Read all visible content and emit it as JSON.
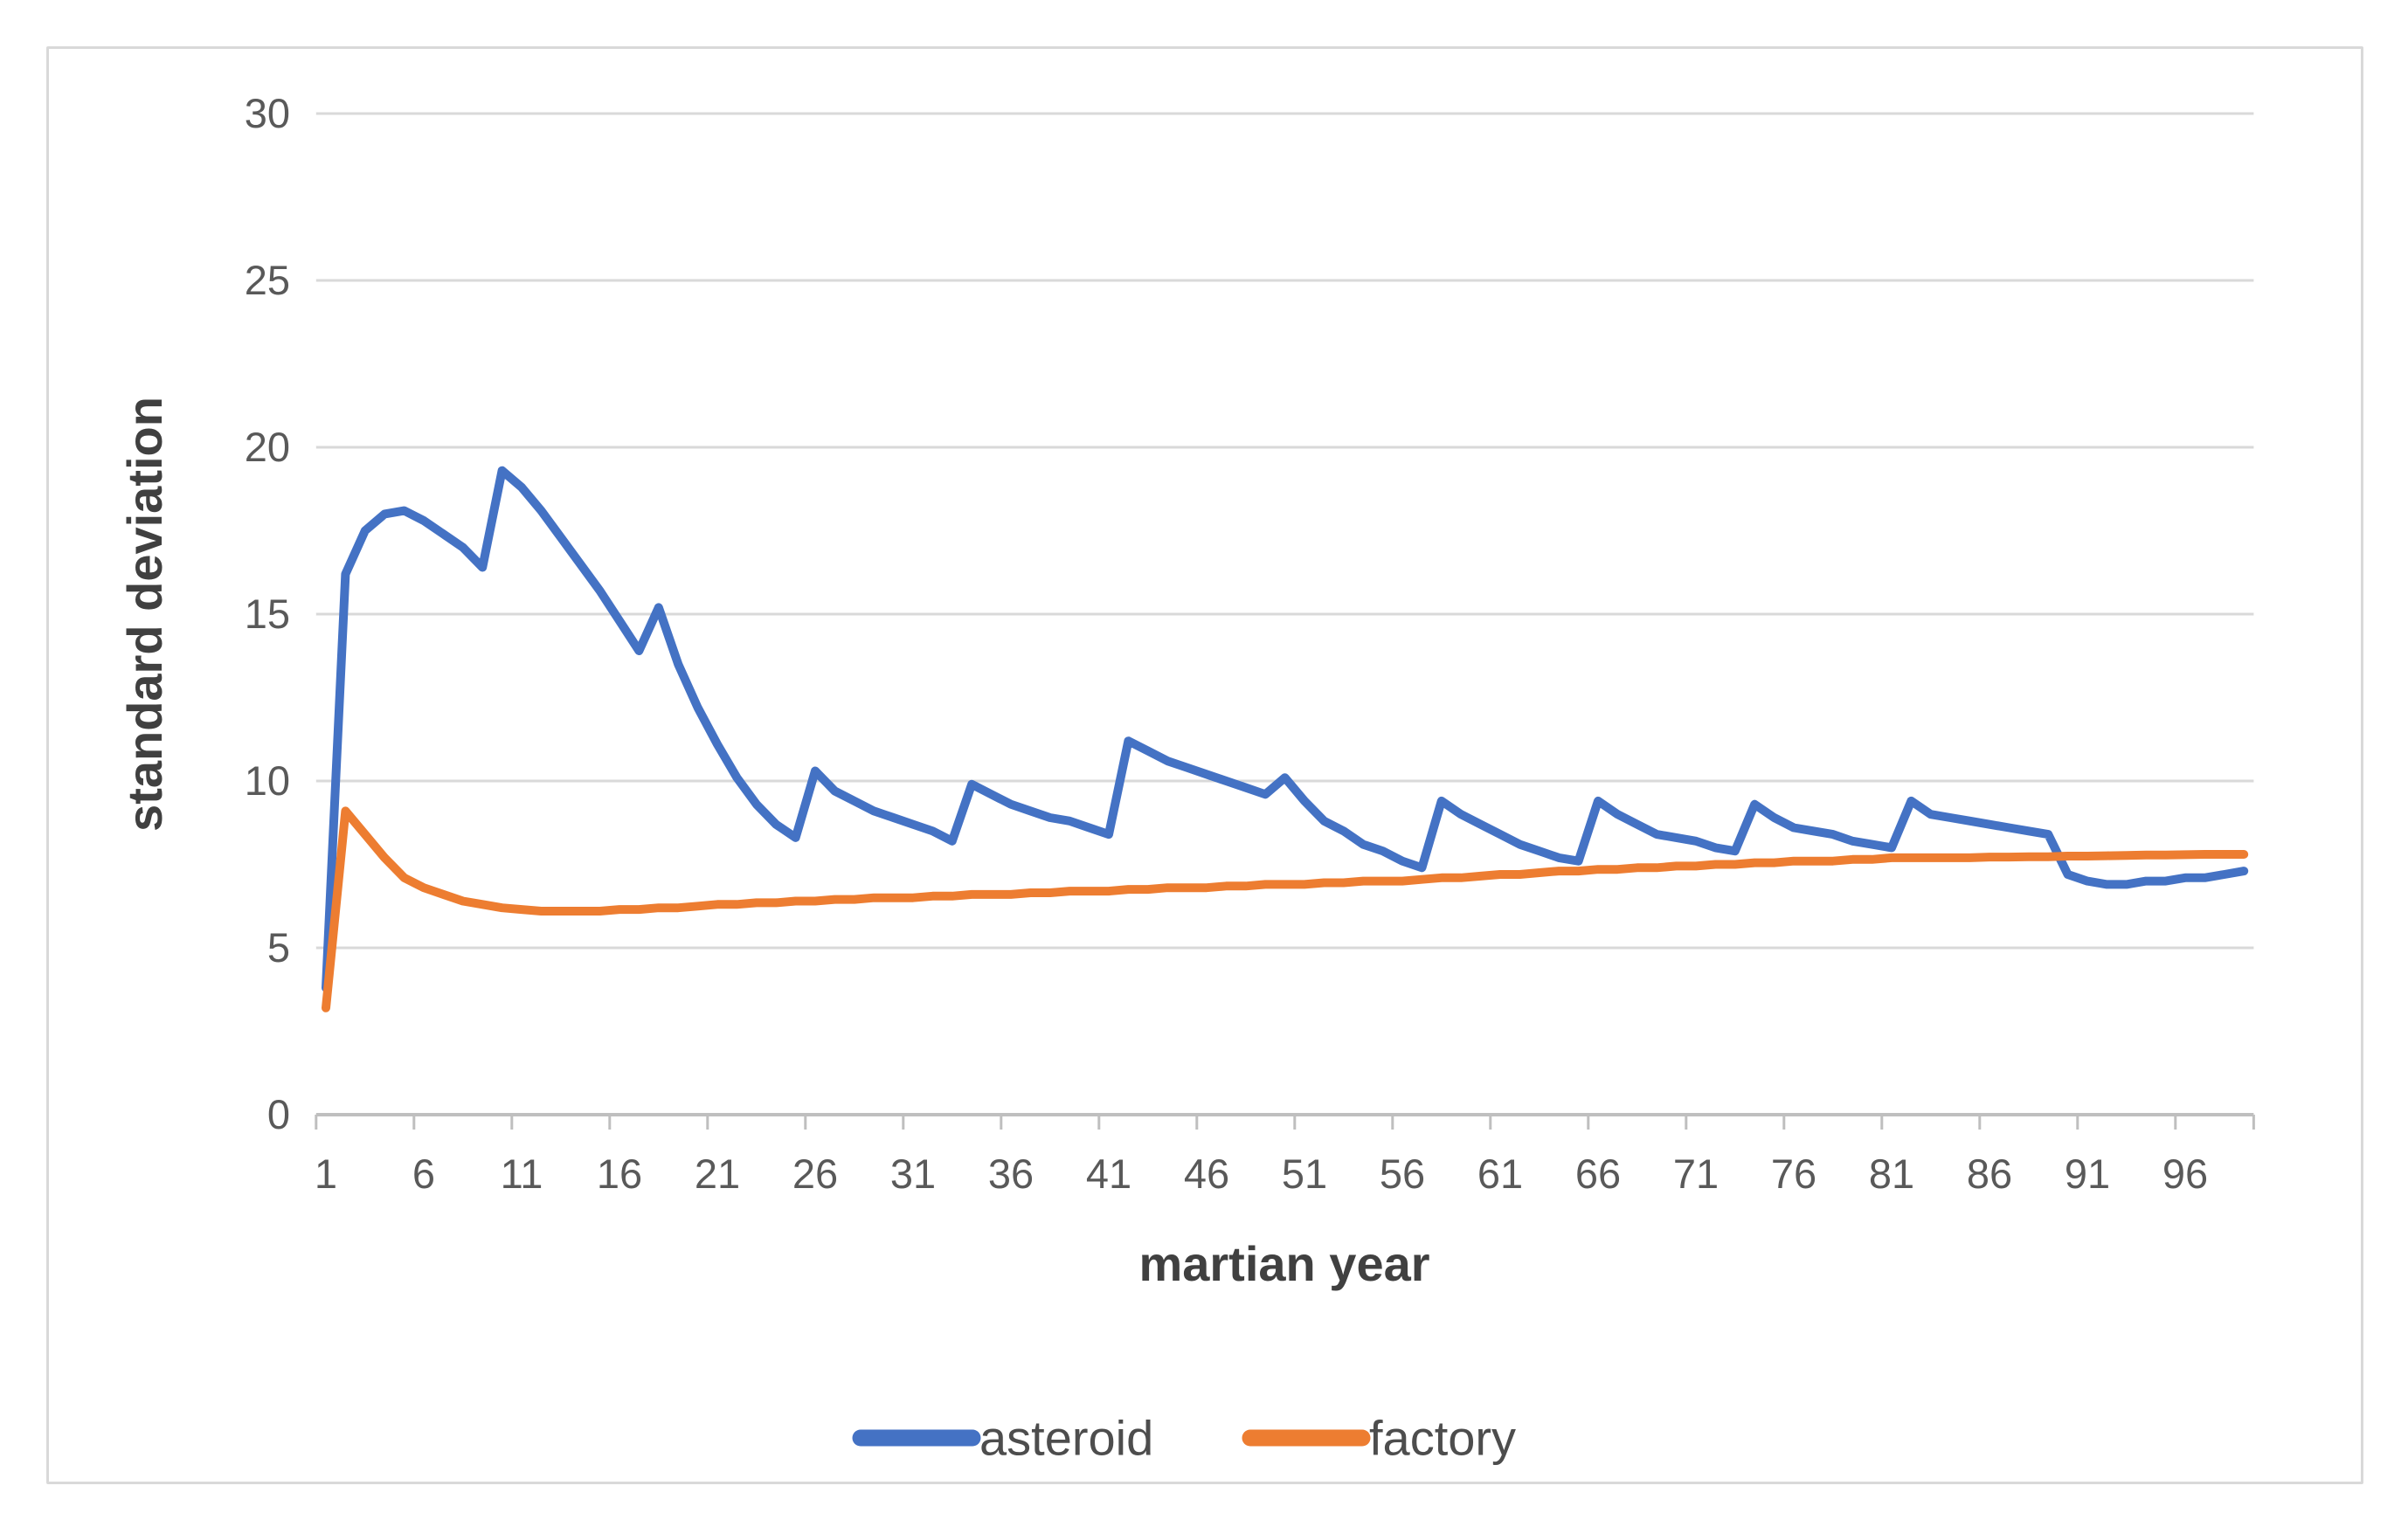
{
  "chart": {
    "y_axis": {
      "title": "standard deviation",
      "ticks": [
        0,
        5,
        10,
        15,
        20,
        25,
        30
      ]
    },
    "x_axis": {
      "title": "martian year",
      "tick_labels": [
        1,
        6,
        11,
        16,
        21,
        26,
        31,
        36,
        41,
        46,
        51,
        56,
        61,
        66,
        71,
        76,
        81,
        86,
        91,
        96
      ]
    },
    "legend": {
      "items": [
        "asteroid",
        "factory"
      ],
      "position": "bottom"
    },
    "colors": {
      "asteroid": "#4472c4",
      "factory": "#ed7d31",
      "gridline": "#d9d9d9",
      "axis": "#bfbfbf",
      "text": "#595959",
      "border": "#d9d9d9"
    }
  },
  "chart_data": {
    "type": "line",
    "title": "",
    "xlabel": "martian year",
    "ylabel": "standard deviation",
    "ylim": [
      0,
      30
    ],
    "grid": true,
    "legend_position": "bottom",
    "x": [
      1,
      2,
      3,
      4,
      5,
      6,
      7,
      8,
      9,
      10,
      11,
      12,
      13,
      14,
      15,
      16,
      17,
      18,
      19,
      20,
      21,
      22,
      23,
      24,
      25,
      26,
      27,
      28,
      29,
      30,
      31,
      32,
      33,
      34,
      35,
      36,
      37,
      38,
      39,
      40,
      41,
      42,
      43,
      44,
      45,
      46,
      47,
      48,
      49,
      50,
      51,
      52,
      53,
      54,
      55,
      56,
      57,
      58,
      59,
      60,
      61,
      62,
      63,
      64,
      65,
      66,
      67,
      68,
      69,
      70,
      71,
      72,
      73,
      74,
      75,
      76,
      77,
      78,
      79,
      80,
      81,
      82,
      83,
      84,
      85,
      86,
      87,
      88,
      89,
      90,
      91,
      92,
      93,
      94,
      95,
      96,
      97,
      98,
      99
    ],
    "series": [
      {
        "name": "asteroid",
        "color": "#4472c4",
        "values": [
          3.8,
          16.2,
          17.5,
          18.0,
          18.1,
          17.8,
          17.4,
          17.0,
          16.4,
          19.3,
          18.8,
          18.1,
          17.3,
          16.5,
          15.7,
          14.8,
          13.9,
          15.2,
          13.5,
          12.2,
          11.1,
          10.1,
          9.3,
          8.7,
          8.3,
          10.3,
          9.7,
          9.4,
          9.1,
          8.9,
          8.7,
          8.5,
          8.2,
          9.9,
          9.6,
          9.3,
          9.1,
          8.9,
          8.8,
          8.6,
          8.4,
          11.2,
          10.9,
          10.6,
          10.4,
          10.2,
          10.0,
          9.8,
          9.6,
          10.1,
          9.4,
          8.8,
          8.5,
          8.1,
          7.9,
          7.6,
          7.4,
          9.4,
          9.0,
          8.7,
          8.4,
          8.1,
          7.9,
          7.7,
          7.6,
          9.4,
          9.0,
          8.7,
          8.4,
          8.3,
          8.2,
          8.0,
          7.9,
          9.3,
          8.9,
          8.6,
          8.5,
          8.4,
          8.2,
          8.1,
          8.0,
          9.4,
          9.0,
          8.9,
          8.8,
          8.7,
          8.6,
          8.5,
          8.4,
          7.2,
          7.0,
          6.9,
          6.9,
          7.0,
          7.0,
          7.1,
          7.1,
          7.2,
          7.3
        ]
      },
      {
        "name": "factory",
        "color": "#ed7d31",
        "values": [
          3.2,
          9.1,
          8.4,
          7.7,
          7.1,
          6.8,
          6.6,
          6.4,
          6.3,
          6.2,
          6.15,
          6.1,
          6.1,
          6.1,
          6.1,
          6.15,
          6.15,
          6.2,
          6.2,
          6.25,
          6.3,
          6.3,
          6.35,
          6.35,
          6.4,
          6.4,
          6.45,
          6.45,
          6.5,
          6.5,
          6.5,
          6.55,
          6.55,
          6.6,
          6.6,
          6.6,
          6.65,
          6.65,
          6.7,
          6.7,
          6.7,
          6.75,
          6.75,
          6.8,
          6.8,
          6.8,
          6.85,
          6.85,
          6.9,
          6.9,
          6.9,
          6.95,
          6.95,
          7.0,
          7.0,
          7.0,
          7.05,
          7.1,
          7.1,
          7.15,
          7.2,
          7.2,
          7.25,
          7.3,
          7.3,
          7.35,
          7.35,
          7.4,
          7.4,
          7.45,
          7.45,
          7.5,
          7.5,
          7.55,
          7.55,
          7.6,
          7.6,
          7.6,
          7.65,
          7.65,
          7.7,
          7.7,
          7.7,
          7.7,
          7.7,
          7.72,
          7.72,
          7.73,
          7.73,
          7.75,
          7.75,
          7.76,
          7.77,
          7.78,
          7.78,
          7.79,
          7.8,
          7.8,
          7.8
        ]
      }
    ]
  }
}
